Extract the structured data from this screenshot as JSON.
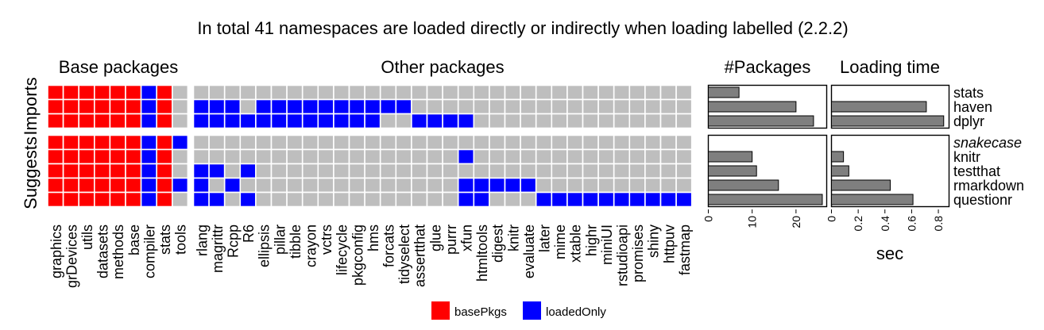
{
  "chart_data": {
    "type": "heatmap",
    "title": "In total 41 namespaces are loaded directly or indirectly when loading labelled (2.2.2)",
    "colors": {
      "basePkgs": "#ff0000",
      "loadedOnly": "#0000ff",
      "none": "#bebebe",
      "bar": "#7f7f7f"
    },
    "legend": [
      {
        "key": "basePkgs",
        "label": "basePkgs"
      },
      {
        "key": "loadedOnly",
        "label": "loadedOnly"
      }
    ],
    "facet_titles": {
      "base": "Base packages",
      "other": "Other packages",
      "packages": "#Packages",
      "time": "Loading time"
    },
    "strips": [
      "Imports",
      "Suggests"
    ],
    "xlabel_time": "sec",
    "base_packages": [
      "graphics",
      "grDevices",
      "utils",
      "datasets",
      "methods",
      "base",
      "compiler",
      "stats",
      "tools"
    ],
    "other_packages": [
      "rlang",
      "magrittr",
      "Rcpp",
      "R6",
      "ellipsis",
      "pillar",
      "tibble",
      "crayon",
      "vctrs",
      "lifecycle",
      "pkgconfig",
      "hms",
      "forcats",
      "tidyselect",
      "assertthat",
      "glue",
      "purrr",
      "xfun",
      "htmltools",
      "digest",
      "knitr",
      "evaluate",
      "later",
      "mime",
      "xtable",
      "highr",
      "miniUI",
      "rstudioapi",
      "promises",
      "shiny",
      "httpuv",
      "fastmap"
    ],
    "groups": [
      {
        "name": "Imports",
        "rows": [
          {
            "label": "stats",
            "italic": false,
            "base": "RRRRRRBR_",
            "other": "________________________________",
            "n_packages": 7,
            "time": 0
          },
          {
            "label": "haven",
            "italic": false,
            "base": "RRRRRRBR_",
            "other": "BBB_BBBBBBBBBB__________________",
            "n_packages": 20,
            "time": 0.71
          },
          {
            "label": "dplyr",
            "italic": false,
            "base": "RRRRRRBR_",
            "other": "BBBBBBBBBBBB__BBBB______________",
            "n_packages": 24,
            "time": 0.84
          }
        ]
      },
      {
        "name": "Suggests",
        "rows": [
          {
            "label": "snakecase",
            "italic": true,
            "base": "RRRRRRBRB",
            "other": "________________________________",
            "n_packages": 0,
            "time": 0
          },
          {
            "label": "knitr",
            "italic": false,
            "base": "RRRRRRBR_",
            "other": "_________________B______________",
            "n_packages": 10,
            "time": 0.09
          },
          {
            "label": "testthat",
            "italic": false,
            "base": "RRRRRRBR_",
            "other": "BB_B____________________________",
            "n_packages": 11,
            "time": 0.13
          },
          {
            "label": "rmarkdown",
            "italic": false,
            "base": "RRRRRRBRB",
            "other": "B_B______________BBBBB__________",
            "n_packages": 16,
            "time": 0.44
          },
          {
            "label": "questionr",
            "italic": false,
            "base": "RRRRRRBR_",
            "other": "BB_B_____________BB___BBBBBBBBBB",
            "n_packages": 26,
            "time": 0.61
          }
        ]
      }
    ],
    "packages_axis": {
      "range": [
        0,
        27
      ],
      "ticks": [
        0,
        10,
        20
      ]
    },
    "time_axis": {
      "range": [
        0,
        0.88
      ],
      "ticks": [
        0,
        0.2,
        0.4,
        0.6,
        0.8
      ],
      "tick_labels": [
        "0",
        "0.2",
        "0.4",
        "0.6",
        "0.8"
      ]
    }
  }
}
